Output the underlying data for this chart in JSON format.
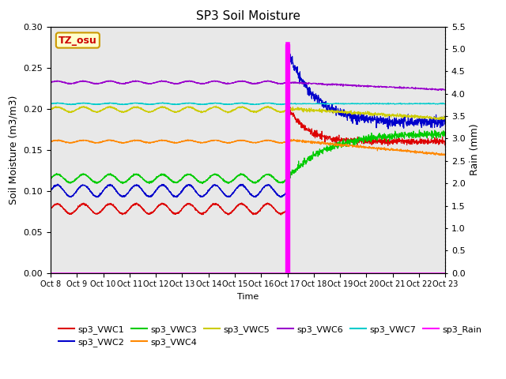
{
  "title": "SP3 Soil Moisture",
  "ylabel_left": "Soil Moisture (m3/m3)",
  "ylabel_right": "Rain (mm)",
  "xlabel": "Time",
  "annotation": "TZ_osu",
  "ylim_left": [
    0.0,
    0.3
  ],
  "ylim_right": [
    0.0,
    5.5
  ],
  "x_tick_labels": [
    "Oct 8",
    "Oct 9",
    "Oct 10",
    "Oct 11",
    "Oct 12",
    "Oct 13",
    "Oct 14",
    "Oct 15",
    "Oct 16",
    "Oct 17",
    "Oct 18",
    "Oct 19",
    "Oct 20",
    "Oct 21",
    "Oct 22",
    "Oct 23"
  ],
  "background_color": "#e8e8e8",
  "series_colors": {
    "sp3_VWC1": "#dd0000",
    "sp3_VWC2": "#0000cc",
    "sp3_VWC3": "#00cc00",
    "sp3_VWC4": "#ff8800",
    "sp3_VWC5": "#cccc00",
    "sp3_VWC6": "#9900cc",
    "sp3_VWC7": "#00cccc",
    "sp3_Rain": "#ff00ff"
  }
}
